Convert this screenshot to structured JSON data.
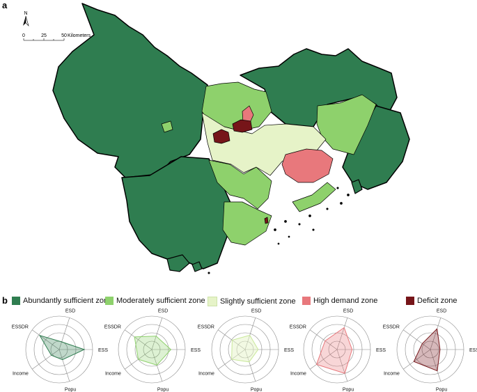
{
  "panels": {
    "a": "a",
    "b": "b"
  },
  "north_arrow": {
    "label": "N"
  },
  "scale_bar": {
    "ticks": [
      "0",
      "25",
      "50"
    ],
    "unit": "Kilometers"
  },
  "zones": [
    {
      "label": "Abundantly sufficient zone",
      "color": "#2f7d50"
    },
    {
      "label": "Moderately sufficient zone",
      "color": "#8ed16c"
    },
    {
      "label": "Slightly sufficient zone",
      "color": "#e6f3c8"
    },
    {
      "label": "High demand zone",
      "color": "#e8787c"
    },
    {
      "label": "Deficit zone",
      "color": "#761519"
    }
  ],
  "chart_data": {
    "type": "radar",
    "axes": [
      "ESS",
      "ESD",
      "ESSDR",
      "Income",
      "Popu"
    ],
    "range": [
      0,
      1
    ],
    "rings": 4,
    "grid": true,
    "series": [
      {
        "name": "Abundantly sufficient zone",
        "values": [
          0.75,
          0.24,
          0.72,
          0.29,
          0.32
        ]
      },
      {
        "name": "Moderately sufficient zone",
        "values": [
          0.57,
          0.42,
          0.64,
          0.5,
          0.49
        ]
      },
      {
        "name": "Slightly sufficient zone",
        "values": [
          0.39,
          0.45,
          0.48,
          0.5,
          0.39
        ]
      },
      {
        "name": "High demand zone",
        "values": [
          0.45,
          0.69,
          0.44,
          0.76,
          0.75
        ]
      },
      {
        "name": "Deficit zone",
        "values": [
          0.29,
          0.65,
          0.3,
          0.61,
          0.67
        ]
      }
    ]
  }
}
